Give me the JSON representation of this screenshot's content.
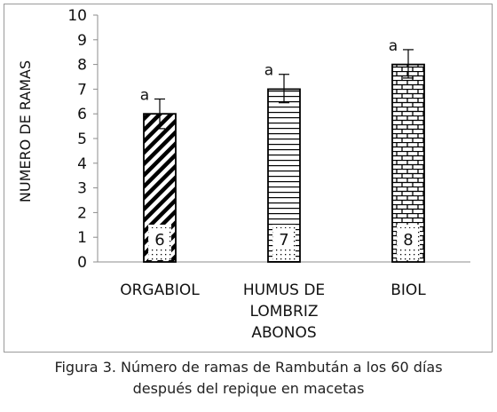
{
  "chart_data": {
    "type": "bar",
    "title": "",
    "xlabel": "",
    "ylabel": "NUMERO DE RAMAS",
    "ylim": [
      0,
      10
    ],
    "yticks": [
      "0",
      "1",
      "2",
      "3",
      "4",
      "5",
      "6",
      "7",
      "8",
      "9",
      "10"
    ],
    "categories": [
      [
        "ORGABIOL"
      ],
      [
        "HUMUS DE",
        "LOMBRIZ",
        "ABONOS"
      ],
      [
        "BIOL"
      ]
    ],
    "values": [
      6,
      7,
      8
    ],
    "error_upper": [
      6.6,
      7.6,
      8.6
    ],
    "error_lower": [
      5.4,
      6.45,
      7.45
    ],
    "data_labels": [
      "6",
      "7",
      "8"
    ],
    "significance_letters": [
      "a",
      "a",
      "a"
    ],
    "bar_patterns": [
      "diagonal-stripes",
      "horizontal-lines",
      "bricks"
    ],
    "grid": false,
    "legend": "none"
  },
  "caption": {
    "line1": "Figura 3. Número de ramas de Rambután a los 60 días",
    "line2": "después del repique en macetas"
  }
}
